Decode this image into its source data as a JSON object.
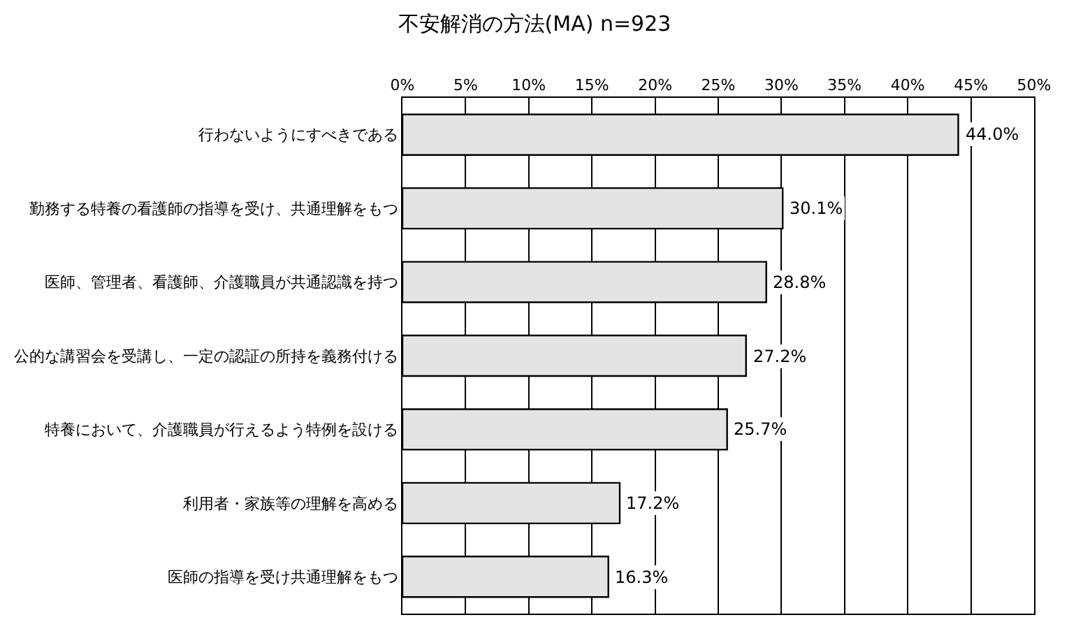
{
  "chart_data": {
    "type": "bar",
    "orientation": "horizontal",
    "title": "不安解消の方法(MA) n=923",
    "categories": [
      "行わないようにすべきである",
      "勤務する特養の看護師の指導を受け、共通理解をもつ",
      "医師、管理者、看護師、介護職員が共通認識を持つ",
      "公的な講習会を受講し、一定の認証の所持を義務付ける",
      "特養において、介護職員が行えるよう特例を設ける",
      "利用者・家族等の理解を高める",
      "医師の指導を受け共通理解をもつ"
    ],
    "values": [
      44.0,
      30.1,
      28.8,
      27.2,
      25.7,
      17.2,
      16.3
    ],
    "value_labels": [
      "44.0%",
      "30.1%",
      "28.8%",
      "27.2%",
      "25.7%",
      "17.2%",
      "16.3%"
    ],
    "color": "#e4e4e4",
    "xlim": [
      0,
      50
    ],
    "xticks": [
      {
        "value": 0,
        "label": "0%"
      },
      {
        "value": 5,
        "label": "5%"
      },
      {
        "value": 10,
        "label": "10%"
      },
      {
        "value": 15,
        "label": "15%"
      },
      {
        "value": 20,
        "label": "20%"
      },
      {
        "value": 25,
        "label": "25%"
      },
      {
        "value": 30,
        "label": "30%"
      },
      {
        "value": 35,
        "label": "35%"
      },
      {
        "value": 40,
        "label": "40%"
      },
      {
        "value": 45,
        "label": "45%"
      },
      {
        "value": 50,
        "label": "50%"
      }
    ],
    "grid": "x"
  }
}
